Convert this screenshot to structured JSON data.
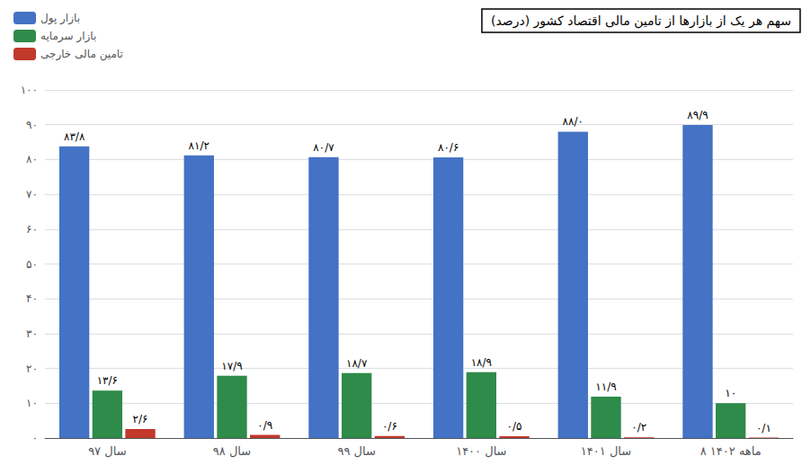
{
  "chart_data": {
    "type": "bar",
    "title": "سهم هر یک از بازارها از تامین مالی اقتصاد کشور (درصد)",
    "categories": [
      "سال ۹۷",
      "سال ۹۸",
      "سال ۹۹",
      "سال ۱۴۰۰",
      "سال ۱۴۰۱",
      "۸ ماهه ۱۴۰۲"
    ],
    "series": [
      {
        "name": "بازار پول",
        "color": "#4472c4",
        "values": [
          83.8,
          81.2,
          80.7,
          80.6,
          88.0,
          89.9
        ],
        "value_labels": [
          "۸۳/۸",
          "۸۱/۲",
          "۸۰/۷",
          "۸۰/۶",
          "۸۸/۰",
          "۸۹/۹"
        ]
      },
      {
        "name": "بازار سرمایه",
        "color": "#2e8b4a",
        "values": [
          13.6,
          17.9,
          18.7,
          18.9,
          11.9,
          10.0
        ],
        "value_labels": [
          "۱۳/۶",
          "۱۷/۹",
          "۱۸/۷",
          "۱۸/۹",
          "۱۱/۹",
          "۱۰"
        ]
      },
      {
        "name": "تامین مالی خارجی",
        "color": "#c0392b",
        "values": [
          2.6,
          0.9,
          0.6,
          0.5,
          0.2,
          0.1
        ],
        "value_labels": [
          "۲/۶",
          "۰/۹",
          "۰/۶",
          "۰/۵",
          "۰/۲",
          "۰/۱"
        ]
      }
    ],
    "ylim": [
      0,
      100
    ],
    "yticks": [
      {
        "value": 0,
        "label": "۰"
      },
      {
        "value": 10,
        "label": "۱۰"
      },
      {
        "value": 20,
        "label": "۲۰"
      },
      {
        "value": 30,
        "label": "۳۰"
      },
      {
        "value": 40,
        "label": "۴۰"
      },
      {
        "value": 50,
        "label": "۵۰"
      },
      {
        "value": 60,
        "label": "۶۰"
      },
      {
        "value": 70,
        "label": "۷۰"
      },
      {
        "value": 80,
        "label": "۸۰"
      },
      {
        "value": 90,
        "label": "۹۰"
      },
      {
        "value": 100,
        "label": "۱۰۰"
      }
    ],
    "grid": true,
    "legend": "upper left",
    "data_labels": true
  }
}
